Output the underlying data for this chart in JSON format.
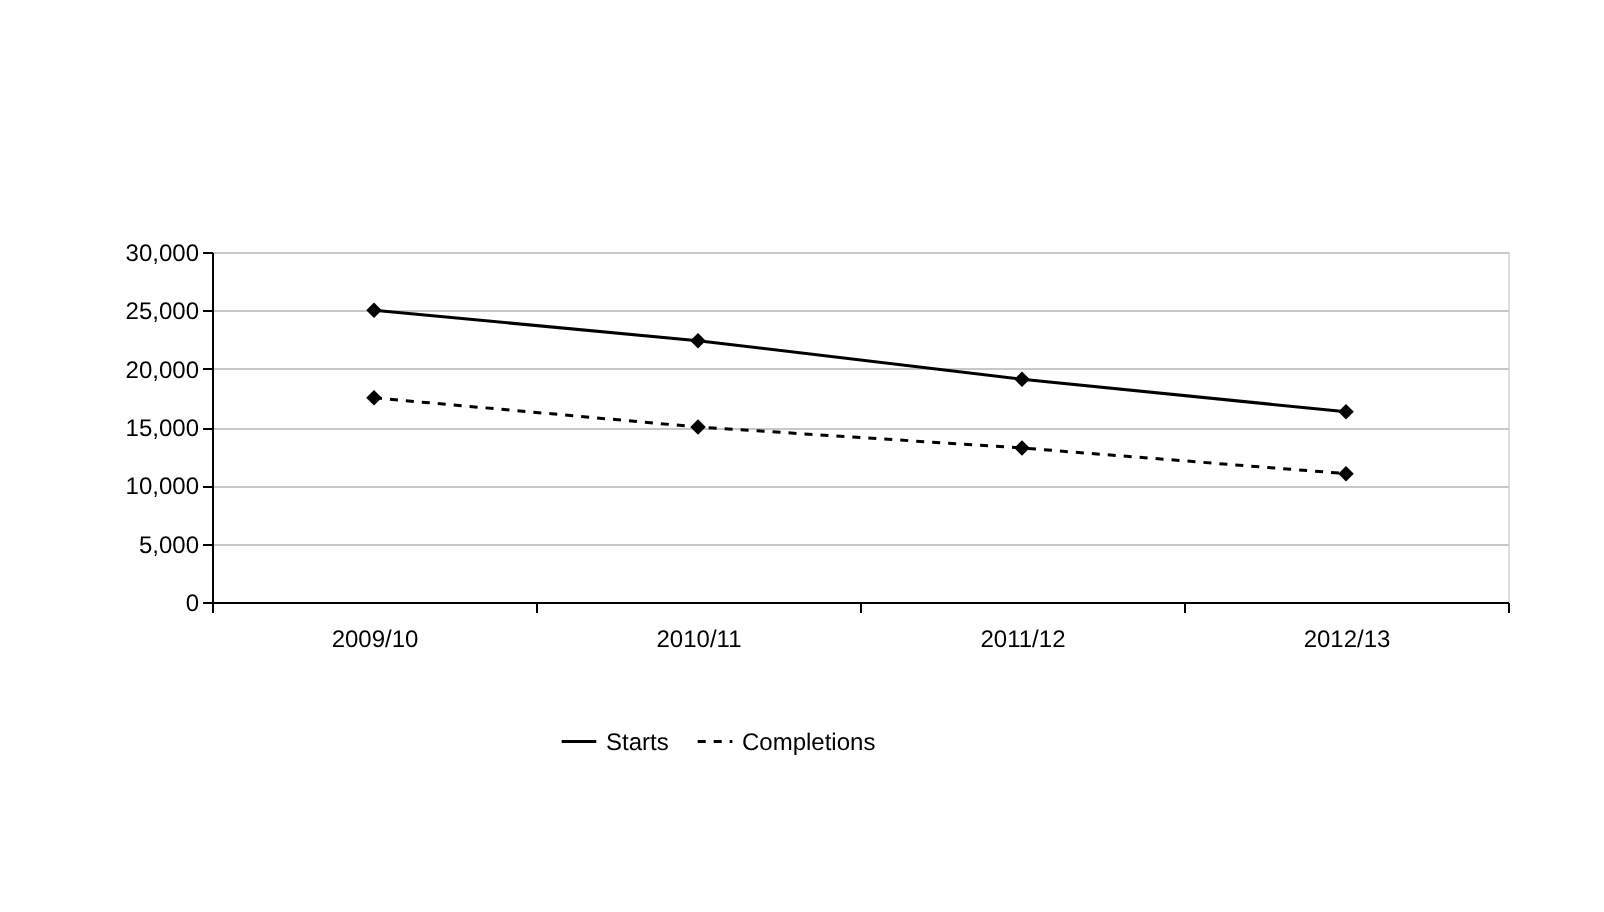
{
  "chart_data": {
    "type": "line",
    "categories": [
      "2009/10",
      "2010/11",
      "2011/12",
      "2012/13"
    ],
    "series": [
      {
        "name": "Starts",
        "color": "#000000",
        "values": [
          25000,
          22400,
          19100,
          16300
        ],
        "line_style": "solid"
      },
      {
        "name": "Completions",
        "color": "#000000",
        "values": [
          17500,
          15000,
          13200,
          11000
        ],
        "line_style": "dashed"
      }
    ],
    "ylim": [
      0,
      30000
    ],
    "yticks": [
      0,
      {
        "value": 5000,
        "label": "5,000"
      },
      {
        "value": 10000,
        "label": "10,000"
      },
      {
        "value": 15000,
        "label": "15,000"
      },
      {
        "value": 20000,
        "label": "20,000"
      },
      {
        "value": 25000,
        "label": "25,000"
      },
      {
        "value": 30000,
        "label": "30,000"
      }
    ],
    "grid": "y",
    "legend": "bottom",
    "marker": "diamond"
  }
}
